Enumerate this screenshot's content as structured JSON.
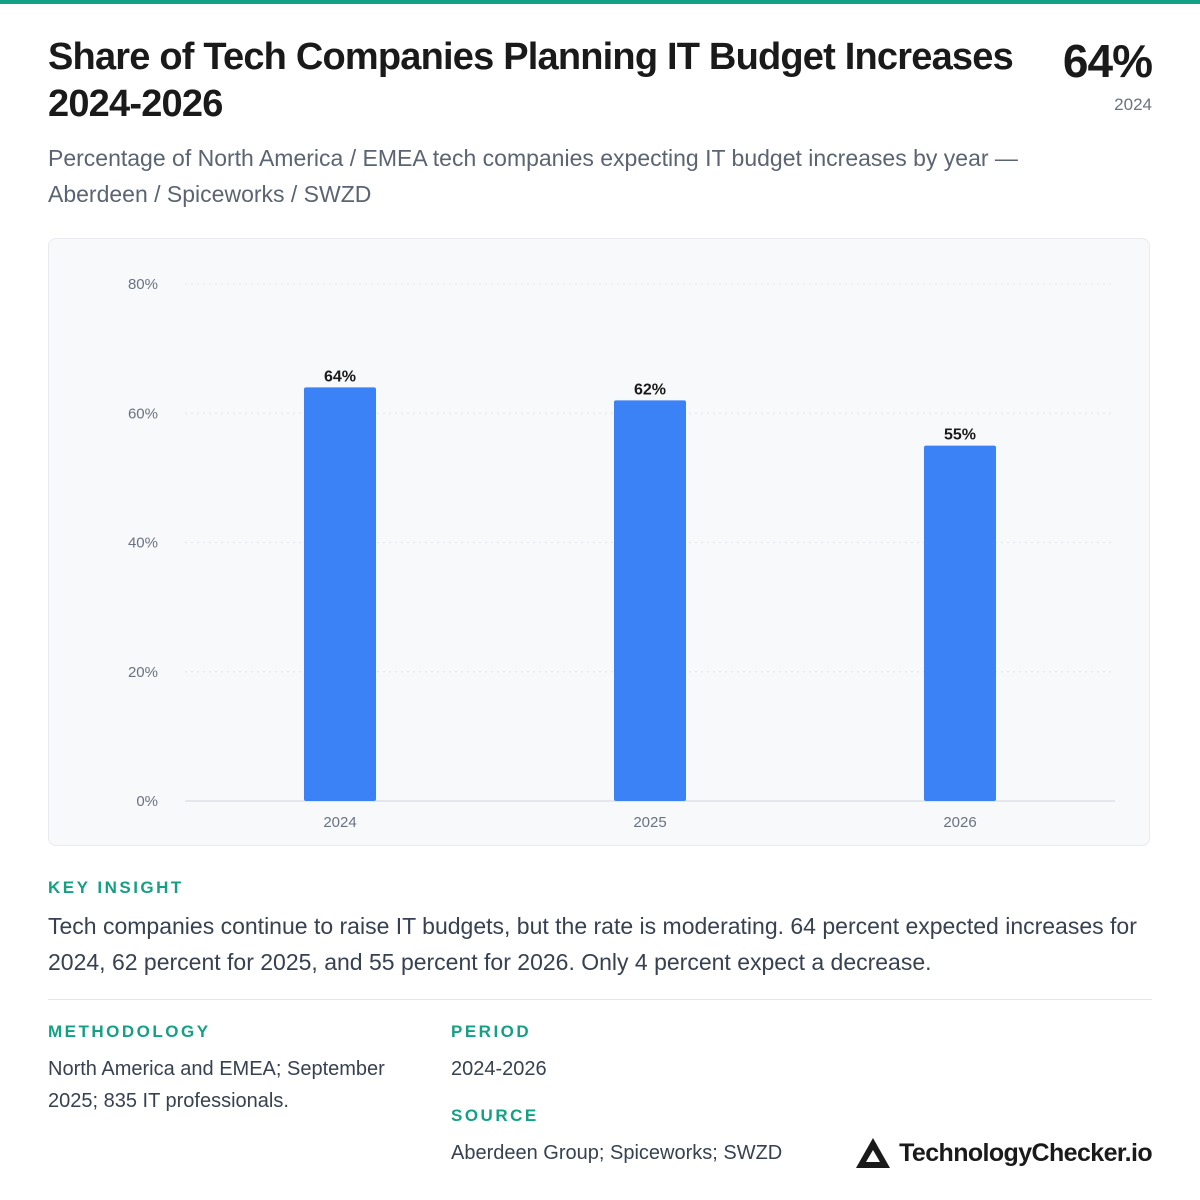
{
  "header": {
    "title": "Share of Tech Companies Planning IT Budget Increases 2024-2026",
    "subtitle": "Percentage of North America / EMEA tech companies expecting IT budget increases by year — Aberdeen / Spiceworks / SWZD",
    "kpi_value": "64%",
    "kpi_label": "2024"
  },
  "chart_data": {
    "type": "bar",
    "title": "",
    "xlabel": "",
    "ylabel": "",
    "categories": [
      "2024",
      "2025",
      "2026"
    ],
    "values": [
      64,
      62,
      55
    ],
    "data_labels": [
      "64%",
      "62%",
      "55%"
    ],
    "ylim": [
      0,
      80
    ],
    "yticks": [
      0,
      20,
      40,
      60,
      80
    ],
    "ytick_labels": [
      "0%",
      "20%",
      "40%",
      "60%",
      "80%"
    ],
    "grid": true,
    "bar_color": "#3b82f6"
  },
  "insight": {
    "label": "KEY INSIGHT",
    "text": "Tech companies continue to raise IT budgets, but the rate is moderating. 64 percent expected increases for 2024, 62 percent for 2025, and 55 percent for 2026. Only 4 percent expect a decrease."
  },
  "meta": {
    "methodology_label": "METHODOLOGY",
    "methodology_text": "North America and EMEA; September 2025; 835 IT professionals.",
    "period_label": "PERIOD",
    "period_text": "2024-2026",
    "source_label": "SOURCE",
    "source_text": "Aberdeen Group; Spiceworks; SWZD"
  },
  "brand": {
    "name": "TechnologyChecker.io",
    "icon": "triangle-logo-icon"
  },
  "colors": {
    "accent": "#14a085",
    "bar": "#3b82f6",
    "text": "#1a1a1a"
  }
}
